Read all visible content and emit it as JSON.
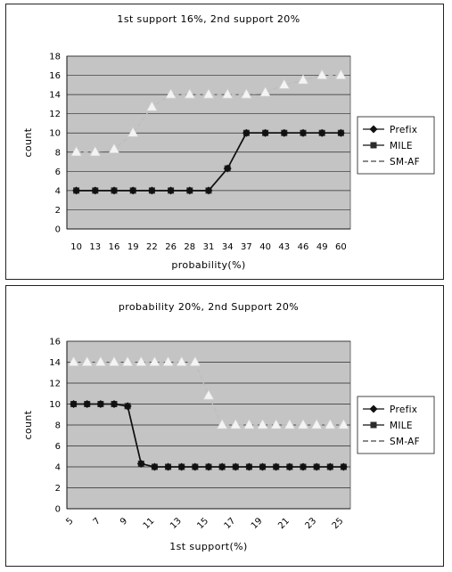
{
  "chart_data": [
    {
      "type": "line",
      "title": "1st support 16%, 2nd support 20%",
      "xlabel": "probability(%)",
      "ylabel": "count",
      "categories": [
        "10",
        "13",
        "16",
        "19",
        "22",
        "26",
        "28",
        "31",
        "34",
        "37",
        "40",
        "43",
        "46",
        "49",
        "60"
      ],
      "ylim": [
        0,
        18
      ],
      "yticks": [
        0,
        2,
        4,
        6,
        8,
        10,
        12,
        14,
        16,
        18
      ],
      "grid": true,
      "legend_position": "right",
      "series": [
        {
          "name": "Prefix",
          "marker": "diamond",
          "line": "solid",
          "values": [
            4,
            4,
            4,
            4,
            4,
            4,
            4,
            4,
            6.3,
            10,
            10,
            10,
            10,
            10,
            10
          ]
        },
        {
          "name": "MILE",
          "marker": "square",
          "line": "solid",
          "values": [
            4,
            4,
            4,
            4,
            4,
            4,
            4,
            4,
            6.3,
            10,
            10,
            10,
            10,
            10,
            10
          ]
        },
        {
          "name": "SM-AF",
          "marker": "triangle",
          "line": "dashed",
          "values": [
            8,
            8,
            8.3,
            10,
            12.7,
            14,
            14,
            14,
            14,
            14,
            14.2,
            15,
            15.5,
            16,
            16
          ]
        }
      ]
    },
    {
      "type": "line",
      "title": "probability 20%, 2nd Support 20%",
      "xlabel": "1st support(%)",
      "ylabel": "count",
      "categories": [
        "5",
        "6",
        "7",
        "8",
        "9",
        "10",
        "11",
        "12",
        "13",
        "14",
        "15",
        "16",
        "17",
        "18",
        "19",
        "20",
        "21",
        "22",
        "23",
        "24",
        "25"
      ],
      "xtick_labels": [
        "5",
        "",
        "7",
        "",
        "9",
        "",
        "11",
        "",
        "13",
        "",
        "15",
        "",
        "17",
        "",
        "19",
        "",
        "21",
        "",
        "23",
        "",
        "25"
      ],
      "ylim": [
        0,
        16
      ],
      "yticks": [
        0,
        2,
        4,
        6,
        8,
        10,
        12,
        14,
        16
      ],
      "grid": true,
      "legend_position": "right",
      "series": [
        {
          "name": "Prefix",
          "marker": "diamond",
          "line": "solid",
          "values": [
            10,
            10,
            10,
            10,
            9.8,
            4.3,
            4,
            4,
            4,
            4,
            4,
            4,
            4,
            4,
            4,
            4,
            4,
            4,
            4,
            4,
            4
          ]
        },
        {
          "name": "MILE",
          "marker": "square",
          "line": "solid",
          "values": [
            10,
            10,
            10,
            10,
            9.8,
            4.3,
            4,
            4,
            4,
            4,
            4,
            4,
            4,
            4,
            4,
            4,
            4,
            4,
            4,
            4,
            4
          ]
        },
        {
          "name": "SM-AF",
          "marker": "triangle",
          "line": "dashed",
          "values": [
            14,
            14,
            14,
            14,
            14,
            14,
            14,
            14,
            14,
            14,
            10.8,
            8,
            8,
            8,
            8,
            8,
            8,
            8,
            8,
            8,
            8
          ]
        }
      ]
    }
  ],
  "colors": {
    "plot_background": "#c4c4c4",
    "gridline": "#2a2a2a",
    "prefix": "#111111",
    "mile": "#2b2b2b",
    "smaf_fill": "#f4f4f4",
    "smaf_line": "#bdbdbd"
  }
}
